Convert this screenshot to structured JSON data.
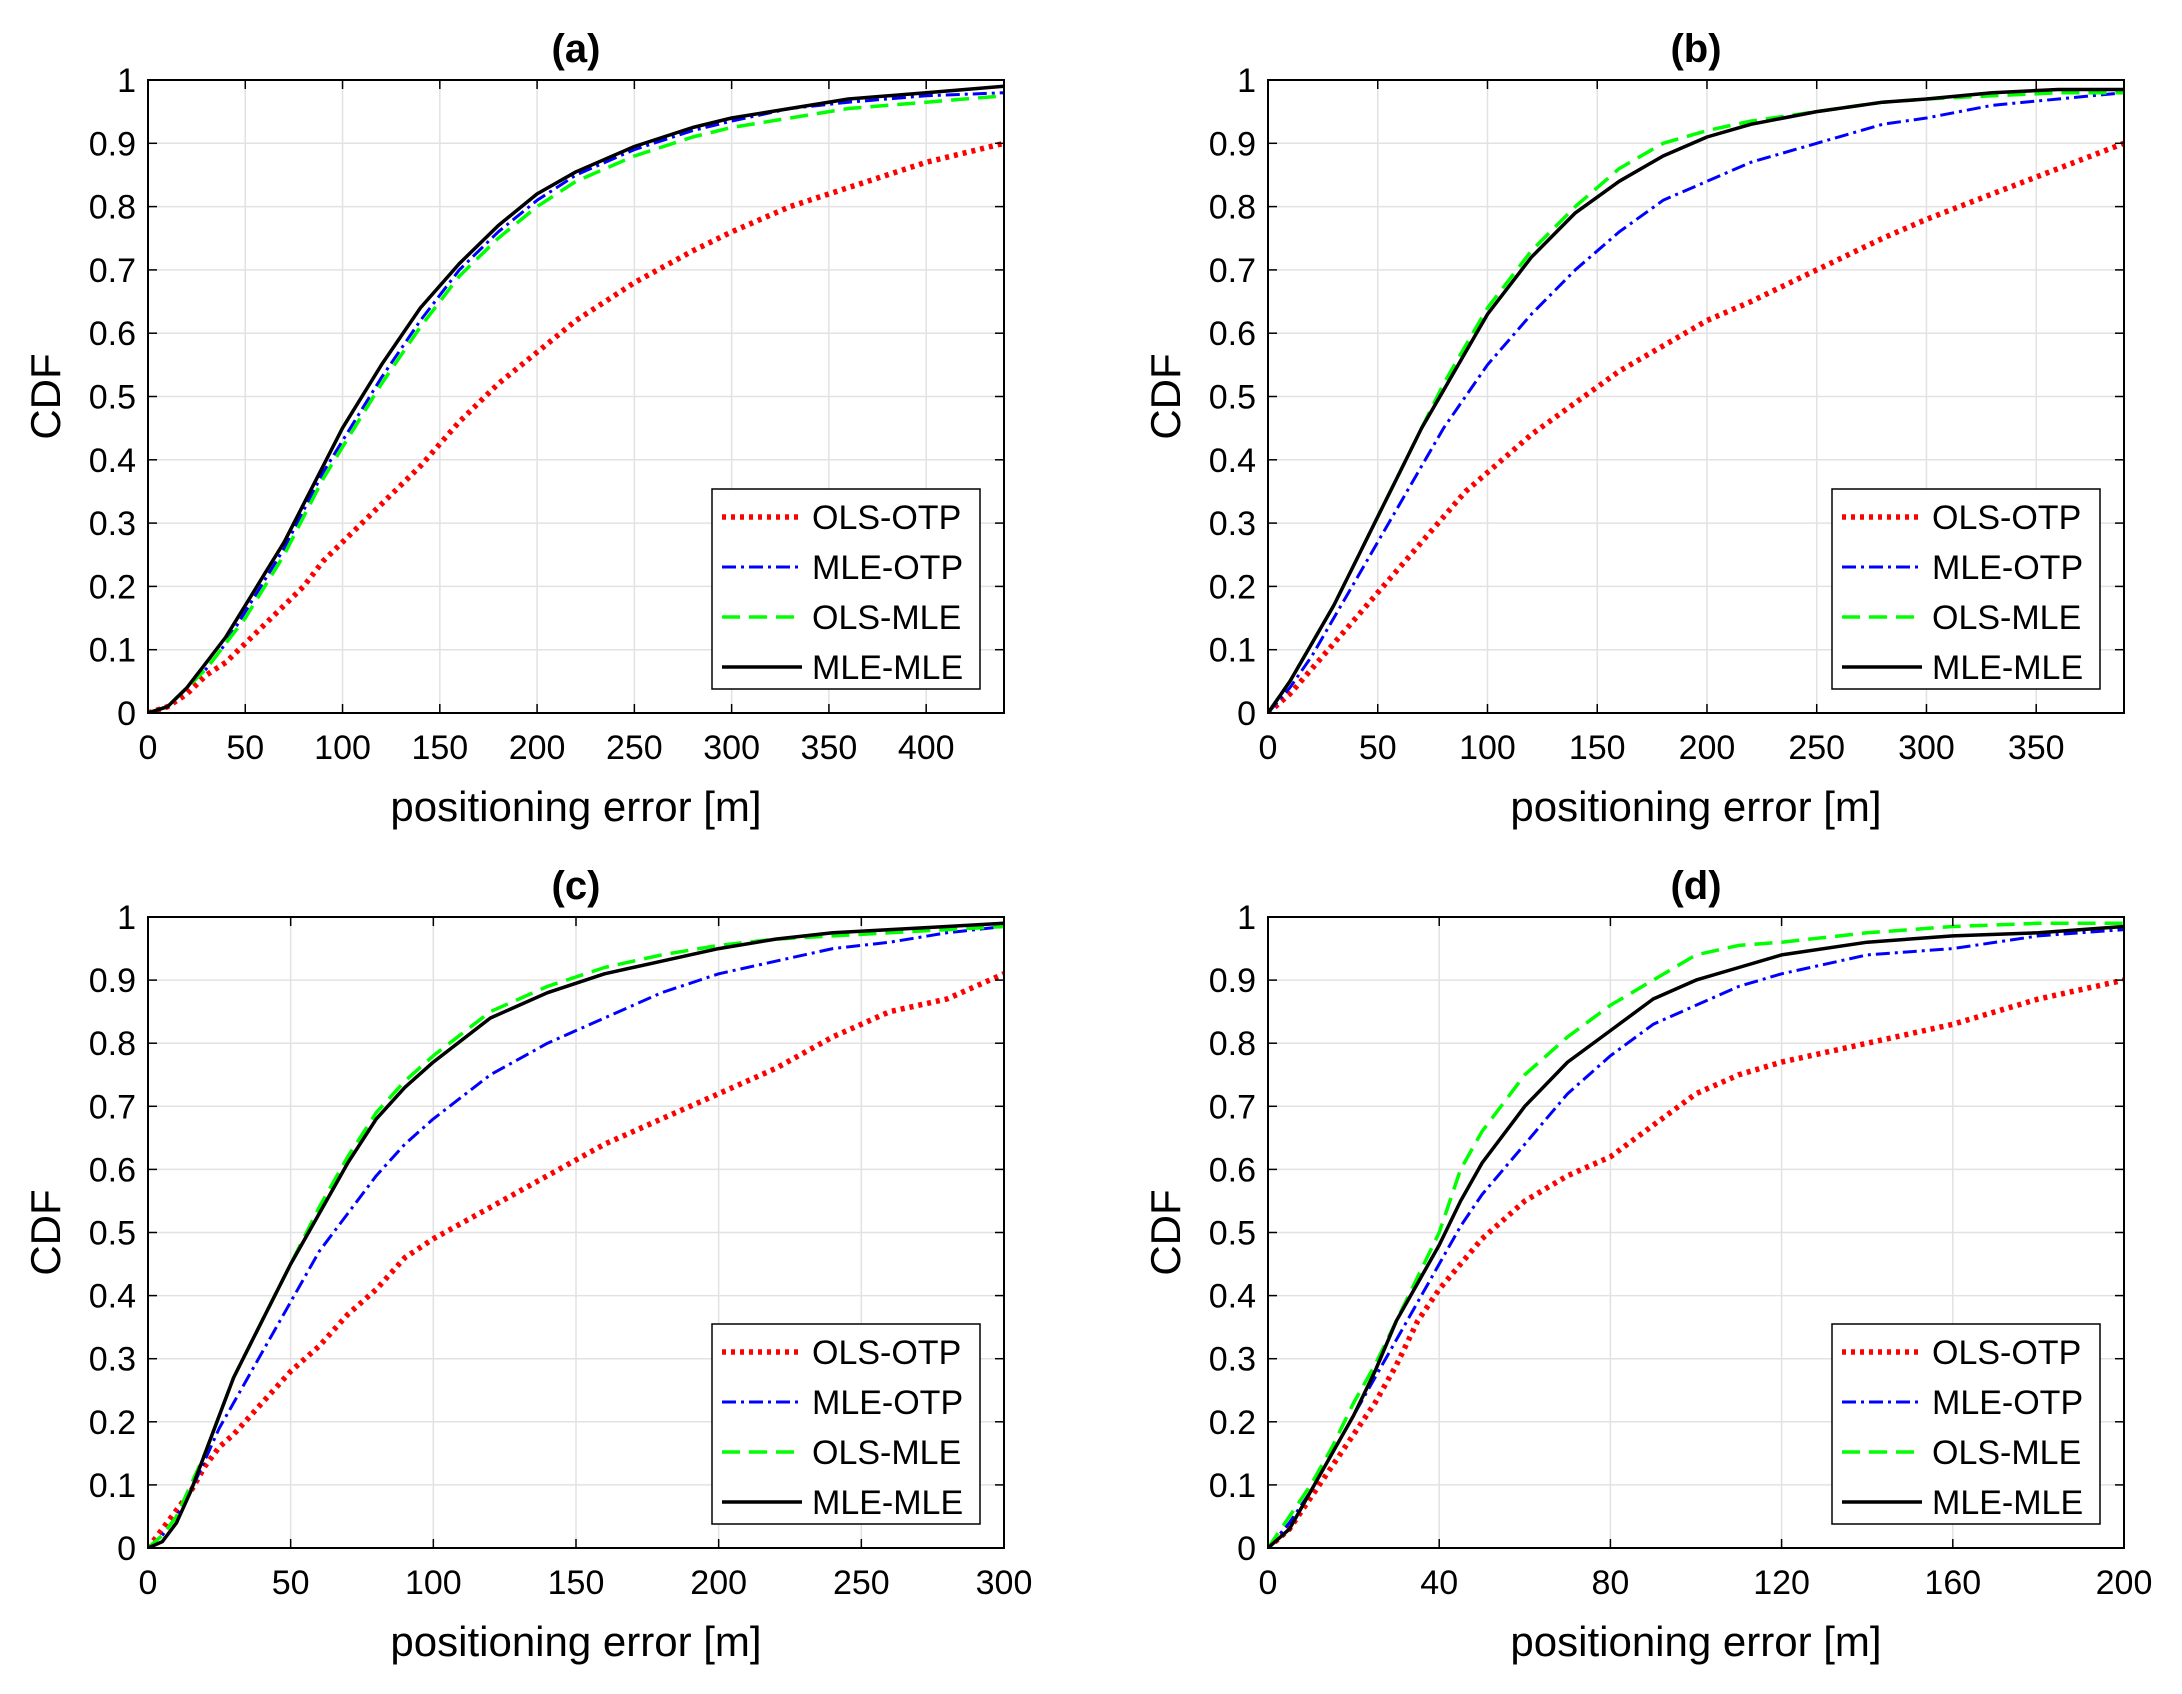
{
  "colors": {
    "OLS-OTP": "#ff0000",
    "MLE-OTP": "#0000ff",
    "OLS-MLE": "#00ff00",
    "MLE-MLE": "#000000"
  },
  "chart_data": [
    {
      "type": "line",
      "title": "(a)",
      "xlabel": "positioning error [m]",
      "ylabel": "CDF",
      "xlim": [
        0,
        440
      ],
      "ylim": [
        0,
        1
      ],
      "xticks": [
        0,
        50,
        100,
        150,
        200,
        250,
        300,
        350,
        400
      ],
      "yticks": [
        0,
        0.1,
        0.2,
        0.3,
        0.4,
        0.5,
        0.6,
        0.7,
        0.8,
        0.9,
        1
      ],
      "grid": true,
      "legend_position": "bottom-right",
      "series": [
        {
          "name": "OLS-OTP",
          "x": [
            0,
            10,
            20,
            30,
            40,
            50,
            60,
            70,
            80,
            90,
            100,
            120,
            140,
            160,
            180,
            200,
            220,
            250,
            280,
            300,
            330,
            360,
            400,
            440
          ],
          "y": [
            0,
            0.01,
            0.03,
            0.06,
            0.08,
            0.11,
            0.14,
            0.17,
            0.2,
            0.24,
            0.27,
            0.33,
            0.39,
            0.46,
            0.52,
            0.57,
            0.62,
            0.68,
            0.73,
            0.76,
            0.8,
            0.83,
            0.87,
            0.9
          ]
        },
        {
          "name": "MLE-OTP",
          "x": [
            0,
            10,
            20,
            30,
            40,
            50,
            60,
            70,
            80,
            90,
            100,
            120,
            140,
            160,
            180,
            200,
            220,
            250,
            280,
            300,
            330,
            360,
            400,
            440
          ],
          "y": [
            0,
            0.01,
            0.04,
            0.07,
            0.11,
            0.16,
            0.21,
            0.26,
            0.32,
            0.38,
            0.43,
            0.53,
            0.62,
            0.7,
            0.76,
            0.81,
            0.85,
            0.89,
            0.92,
            0.935,
            0.955,
            0.965,
            0.975,
            0.98
          ]
        },
        {
          "name": "OLS-MLE",
          "x": [
            0,
            10,
            20,
            30,
            40,
            50,
            60,
            70,
            80,
            90,
            100,
            120,
            140,
            160,
            180,
            200,
            220,
            250,
            280,
            300,
            330,
            360,
            400,
            440
          ],
          "y": [
            0,
            0.01,
            0.04,
            0.07,
            0.11,
            0.15,
            0.2,
            0.25,
            0.31,
            0.37,
            0.42,
            0.52,
            0.61,
            0.69,
            0.75,
            0.8,
            0.84,
            0.88,
            0.91,
            0.925,
            0.94,
            0.955,
            0.965,
            0.975
          ]
        },
        {
          "name": "MLE-MLE",
          "x": [
            0,
            10,
            20,
            30,
            40,
            50,
            60,
            70,
            80,
            90,
            100,
            120,
            140,
            160,
            180,
            200,
            220,
            250,
            280,
            300,
            330,
            360,
            400,
            440
          ],
          "y": [
            0,
            0.01,
            0.04,
            0.08,
            0.12,
            0.17,
            0.22,
            0.27,
            0.33,
            0.39,
            0.45,
            0.55,
            0.64,
            0.71,
            0.77,
            0.82,
            0.855,
            0.895,
            0.925,
            0.94,
            0.955,
            0.97,
            0.98,
            0.99
          ]
        }
      ]
    },
    {
      "type": "line",
      "title": "(b)",
      "xlabel": "positioning error [m]",
      "ylabel": "CDF",
      "xlim": [
        0,
        390
      ],
      "ylim": [
        0,
        1
      ],
      "xticks": [
        0,
        50,
        100,
        150,
        200,
        250,
        300,
        350
      ],
      "yticks": [
        0,
        0.1,
        0.2,
        0.3,
        0.4,
        0.5,
        0.6,
        0.7,
        0.8,
        0.9,
        1
      ],
      "grid": true,
      "legend_position": "bottom-right",
      "series": [
        {
          "name": "OLS-OTP",
          "x": [
            0,
            10,
            20,
            30,
            40,
            50,
            60,
            70,
            80,
            90,
            100,
            120,
            140,
            160,
            180,
            200,
            220,
            250,
            280,
            300,
            330,
            360,
            390
          ],
          "y": [
            0,
            0.03,
            0.07,
            0.11,
            0.15,
            0.19,
            0.23,
            0.27,
            0.31,
            0.35,
            0.38,
            0.44,
            0.49,
            0.54,
            0.58,
            0.62,
            0.65,
            0.7,
            0.75,
            0.78,
            0.82,
            0.86,
            0.9
          ]
        },
        {
          "name": "MLE-OTP",
          "x": [
            0,
            10,
            20,
            30,
            40,
            50,
            60,
            70,
            80,
            90,
            100,
            120,
            140,
            160,
            180,
            200,
            220,
            250,
            280,
            300,
            330,
            360,
            390
          ],
          "y": [
            0,
            0.04,
            0.09,
            0.15,
            0.21,
            0.27,
            0.33,
            0.39,
            0.45,
            0.5,
            0.55,
            0.63,
            0.7,
            0.76,
            0.81,
            0.84,
            0.87,
            0.9,
            0.93,
            0.94,
            0.96,
            0.97,
            0.98
          ]
        },
        {
          "name": "OLS-MLE",
          "x": [
            0,
            10,
            20,
            30,
            40,
            50,
            60,
            70,
            80,
            90,
            100,
            120,
            140,
            160,
            180,
            200,
            220,
            250,
            280,
            300,
            330,
            360,
            390
          ],
          "y": [
            0,
            0.05,
            0.11,
            0.17,
            0.24,
            0.31,
            0.38,
            0.45,
            0.52,
            0.58,
            0.64,
            0.73,
            0.8,
            0.86,
            0.9,
            0.92,
            0.935,
            0.95,
            0.965,
            0.97,
            0.975,
            0.98,
            0.98
          ]
        },
        {
          "name": "MLE-MLE",
          "x": [
            0,
            10,
            20,
            30,
            40,
            50,
            60,
            70,
            80,
            90,
            100,
            120,
            140,
            160,
            180,
            200,
            220,
            250,
            280,
            300,
            330,
            360,
            390
          ],
          "y": [
            0,
            0.05,
            0.11,
            0.17,
            0.24,
            0.31,
            0.38,
            0.45,
            0.51,
            0.57,
            0.63,
            0.72,
            0.79,
            0.84,
            0.88,
            0.91,
            0.93,
            0.95,
            0.965,
            0.97,
            0.98,
            0.985,
            0.985
          ]
        }
      ]
    },
    {
      "type": "line",
      "title": "(c)",
      "xlabel": "positioning error [m]",
      "ylabel": "CDF",
      "xlim": [
        0,
        300
      ],
      "ylim": [
        0,
        1
      ],
      "xticks": [
        0,
        50,
        100,
        150,
        200,
        250,
        300
      ],
      "yticks": [
        0,
        0.1,
        0.2,
        0.3,
        0.4,
        0.5,
        0.6,
        0.7,
        0.8,
        0.9,
        1
      ],
      "grid": true,
      "legend_position": "bottom-right",
      "series": [
        {
          "name": "OLS-OTP",
          "x": [
            0,
            5,
            10,
            15,
            20,
            25,
            30,
            40,
            50,
            60,
            70,
            80,
            90,
            100,
            120,
            140,
            160,
            180,
            200,
            220,
            240,
            260,
            280,
            300
          ],
          "y": [
            0,
            0.03,
            0.06,
            0.09,
            0.13,
            0.16,
            0.18,
            0.23,
            0.28,
            0.32,
            0.37,
            0.41,
            0.46,
            0.49,
            0.54,
            0.59,
            0.64,
            0.68,
            0.72,
            0.76,
            0.81,
            0.85,
            0.87,
            0.91
          ]
        },
        {
          "name": "MLE-OTP",
          "x": [
            0,
            5,
            10,
            15,
            20,
            25,
            30,
            40,
            50,
            60,
            70,
            80,
            90,
            100,
            120,
            140,
            160,
            180,
            200,
            220,
            240,
            260,
            280,
            300
          ],
          "y": [
            0,
            0.02,
            0.05,
            0.09,
            0.14,
            0.19,
            0.23,
            0.31,
            0.39,
            0.47,
            0.53,
            0.59,
            0.64,
            0.68,
            0.75,
            0.8,
            0.84,
            0.88,
            0.91,
            0.93,
            0.95,
            0.96,
            0.975,
            0.985
          ]
        },
        {
          "name": "OLS-MLE",
          "x": [
            0,
            5,
            10,
            15,
            20,
            25,
            30,
            40,
            50,
            60,
            70,
            80,
            90,
            100,
            120,
            140,
            160,
            180,
            200,
            220,
            240,
            260,
            280,
            300
          ],
          "y": [
            0,
            0.02,
            0.05,
            0.1,
            0.15,
            0.21,
            0.27,
            0.36,
            0.45,
            0.54,
            0.62,
            0.69,
            0.74,
            0.78,
            0.85,
            0.89,
            0.92,
            0.94,
            0.955,
            0.965,
            0.97,
            0.975,
            0.98,
            0.985
          ]
        },
        {
          "name": "MLE-MLE",
          "x": [
            0,
            5,
            10,
            15,
            20,
            25,
            30,
            40,
            50,
            60,
            70,
            80,
            90,
            100,
            120,
            140,
            160,
            180,
            200,
            220,
            240,
            260,
            280,
            300
          ],
          "y": [
            0,
            0.01,
            0.04,
            0.09,
            0.15,
            0.21,
            0.27,
            0.36,
            0.45,
            0.53,
            0.61,
            0.68,
            0.73,
            0.77,
            0.84,
            0.88,
            0.91,
            0.93,
            0.95,
            0.965,
            0.975,
            0.98,
            0.985,
            0.99
          ]
        }
      ]
    },
    {
      "type": "line",
      "title": "(d)",
      "xlabel": "positioning error [m]",
      "ylabel": "CDF",
      "xlim": [
        0,
        200
      ],
      "ylim": [
        0,
        1
      ],
      "xticks": [
        0,
        40,
        80,
        120,
        160,
        200
      ],
      "yticks": [
        0,
        0.1,
        0.2,
        0.3,
        0.4,
        0.5,
        0.6,
        0.7,
        0.8,
        0.9,
        1
      ],
      "grid": true,
      "legend_position": "bottom-right",
      "series": [
        {
          "name": "OLS-OTP",
          "x": [
            0,
            5,
            10,
            15,
            20,
            25,
            30,
            35,
            40,
            45,
            50,
            60,
            70,
            80,
            90,
            100,
            110,
            120,
            140,
            160,
            180,
            200
          ],
          "y": [
            0,
            0.03,
            0.08,
            0.13,
            0.18,
            0.23,
            0.29,
            0.36,
            0.41,
            0.45,
            0.49,
            0.55,
            0.59,
            0.62,
            0.67,
            0.72,
            0.75,
            0.77,
            0.8,
            0.83,
            0.87,
            0.9
          ]
        },
        {
          "name": "MLE-OTP",
          "x": [
            0,
            5,
            10,
            15,
            20,
            25,
            30,
            35,
            40,
            45,
            50,
            60,
            70,
            80,
            90,
            100,
            110,
            120,
            140,
            160,
            180,
            200
          ],
          "y": [
            0,
            0.04,
            0.09,
            0.15,
            0.21,
            0.27,
            0.33,
            0.39,
            0.45,
            0.51,
            0.56,
            0.64,
            0.72,
            0.78,
            0.83,
            0.86,
            0.89,
            0.91,
            0.94,
            0.95,
            0.97,
            0.98
          ]
        },
        {
          "name": "OLS-MLE",
          "x": [
            0,
            5,
            10,
            15,
            20,
            25,
            30,
            35,
            40,
            45,
            50,
            60,
            70,
            80,
            90,
            100,
            110,
            120,
            140,
            160,
            180,
            200
          ],
          "y": [
            0,
            0.05,
            0.1,
            0.16,
            0.23,
            0.29,
            0.36,
            0.43,
            0.5,
            0.6,
            0.66,
            0.75,
            0.81,
            0.86,
            0.9,
            0.94,
            0.955,
            0.96,
            0.975,
            0.985,
            0.99,
            0.99
          ]
        },
        {
          "name": "MLE-MLE",
          "x": [
            0,
            5,
            10,
            15,
            20,
            25,
            30,
            35,
            40,
            45,
            50,
            60,
            70,
            80,
            90,
            100,
            110,
            120,
            140,
            160,
            180,
            200
          ],
          "y": [
            0,
            0.03,
            0.09,
            0.15,
            0.21,
            0.28,
            0.36,
            0.42,
            0.48,
            0.55,
            0.61,
            0.7,
            0.77,
            0.82,
            0.87,
            0.9,
            0.92,
            0.94,
            0.96,
            0.97,
            0.975,
            0.985
          ]
        }
      ]
    }
  ]
}
